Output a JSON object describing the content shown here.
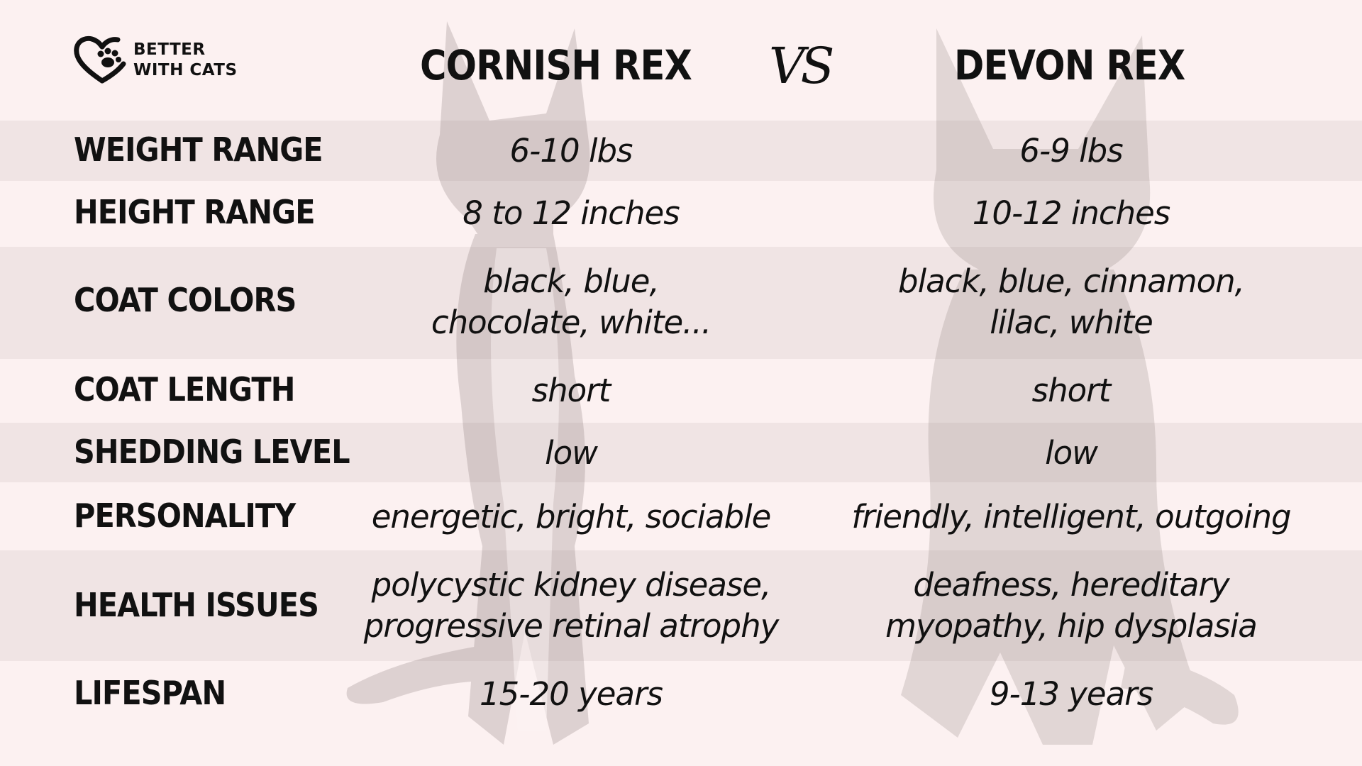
{
  "brand": {
    "line1": "BETTER",
    "line2": "WITH CATS",
    "icon": "heart-paw-icon"
  },
  "header": {
    "breed_a": "CORNISH REX",
    "vs": "VS",
    "breed_b": "DEVON REX"
  },
  "rows": [
    {
      "label": "WEIGHT RANGE",
      "a": [
        "6-10 lbs"
      ],
      "b": [
        "6-9 lbs"
      ]
    },
    {
      "label": "HEIGHT RANGE",
      "a": [
        "8 to 12 inches"
      ],
      "b": [
        "10-12 inches"
      ]
    },
    {
      "label": "COAT COLORS",
      "a": [
        "black, blue,",
        "chocolate, white..."
      ],
      "b": [
        "black, blue, cinnamon,",
        "lilac, white"
      ]
    },
    {
      "label": "COAT LENGTH",
      "a": [
        "short"
      ],
      "b": [
        "short"
      ]
    },
    {
      "label": "SHEDDING LEVEL",
      "a": [
        "low"
      ],
      "b": [
        "low"
      ]
    },
    {
      "label": "PERSONALITY",
      "a": [
        "energetic, bright, sociable"
      ],
      "b": [
        "friendly, intelligent, outgoing"
      ]
    },
    {
      "label": "HEALTH ISSUES",
      "a": [
        "polycystic kidney disease,",
        "progressive retinal atrophy"
      ],
      "b": [
        "deafness, hereditary",
        "myopathy, hip dysplasia"
      ]
    },
    {
      "label": "LIFESPAN",
      "a": [
        "15-20 years"
      ],
      "b": [
        "9-13 years"
      ]
    }
  ],
  "colors": {
    "background": "#fcf1f1",
    "stripe": "#f0e4e4",
    "text": "#111111"
  }
}
